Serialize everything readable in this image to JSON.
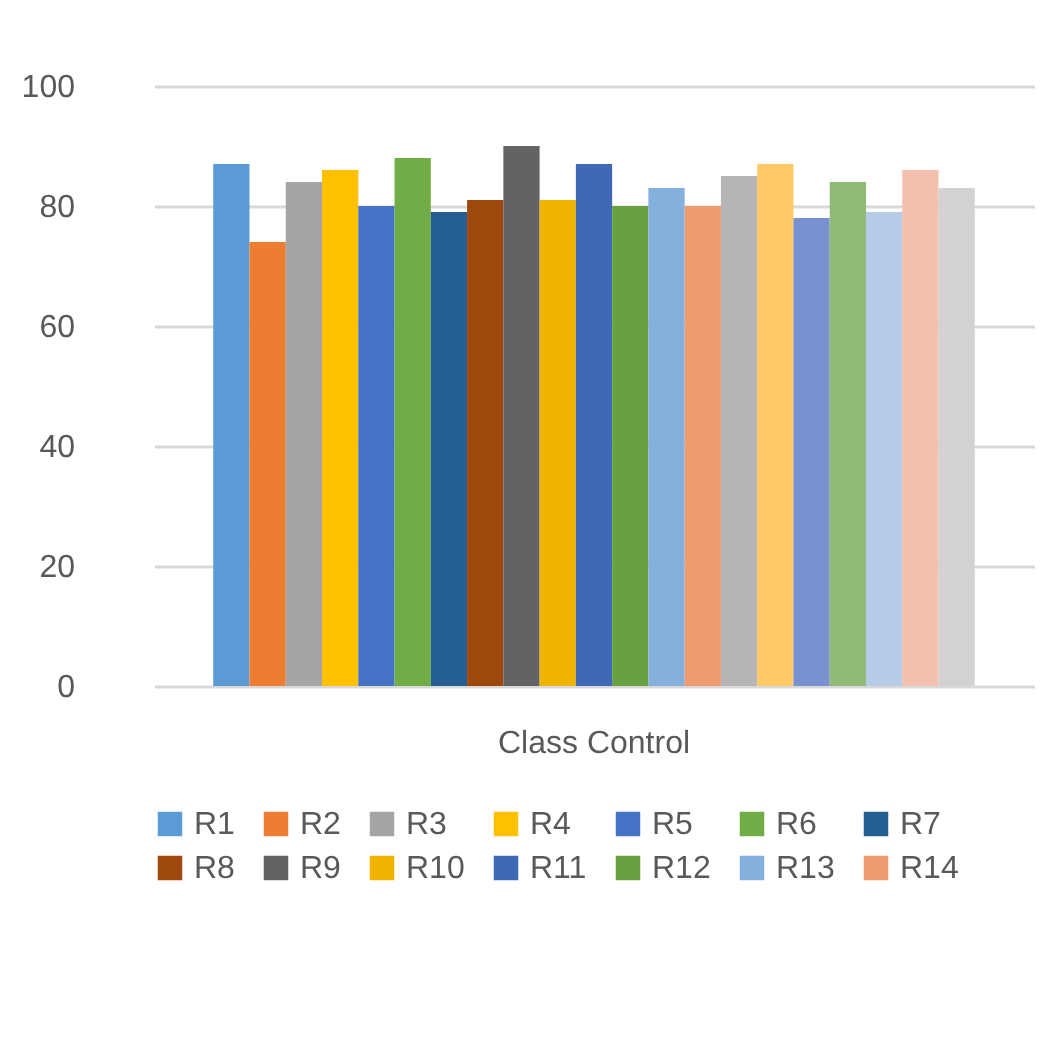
{
  "chart_data": {
    "type": "bar",
    "categories": [
      "Class Control"
    ],
    "ylim": [
      0,
      100
    ],
    "yticks": [
      0,
      20,
      40,
      60,
      80,
      100
    ],
    "grid": "y",
    "legend": "bottom",
    "series": [
      {
        "name": "R1",
        "color": "#5b9bd5",
        "values": [
          87
        ]
      },
      {
        "name": "R2",
        "color": "#ed7d31",
        "values": [
          74
        ]
      },
      {
        "name": "R3",
        "color": "#a5a5a5",
        "values": [
          84
        ]
      },
      {
        "name": "R4",
        "color": "#ffc000",
        "values": [
          86
        ]
      },
      {
        "name": "R5",
        "color": "#4472c4",
        "values": [
          80
        ]
      },
      {
        "name": "R6",
        "color": "#70ad47",
        "values": [
          88
        ]
      },
      {
        "name": "R7",
        "color": "#255e91",
        "values": [
          79
        ]
      },
      {
        "name": "R8",
        "color": "#9e480e",
        "values": [
          81
        ]
      },
      {
        "name": "R9",
        "color": "#636363",
        "values": [
          90
        ]
      },
      {
        "name": "R10",
        "color": "#f0b400",
        "values": [
          81
        ]
      },
      {
        "name": "R11",
        "color": "#3d69b7",
        "values": [
          87
        ]
      },
      {
        "name": "R12",
        "color": "#68a142",
        "values": [
          80
        ]
      },
      {
        "name": "R13",
        "color": "#85afdc",
        "values": [
          83
        ]
      },
      {
        "name": "R14",
        "color": "#f09a71",
        "values": [
          80
        ]
      },
      {
        "color": "#b5b5b5",
        "values": [
          85
        ]
      },
      {
        "color": "#ffc966",
        "values": [
          87
        ]
      },
      {
        "color": "#7a91cf",
        "values": [
          78
        ]
      },
      {
        "color": "#90ba77",
        "values": [
          84
        ]
      },
      {
        "color": "#b7cce9",
        "values": [
          79
        ]
      },
      {
        "color": "#f4c0ad",
        "values": [
          86
        ]
      },
      {
        "color": "#d2d2d2",
        "values": [
          83
        ]
      }
    ]
  }
}
